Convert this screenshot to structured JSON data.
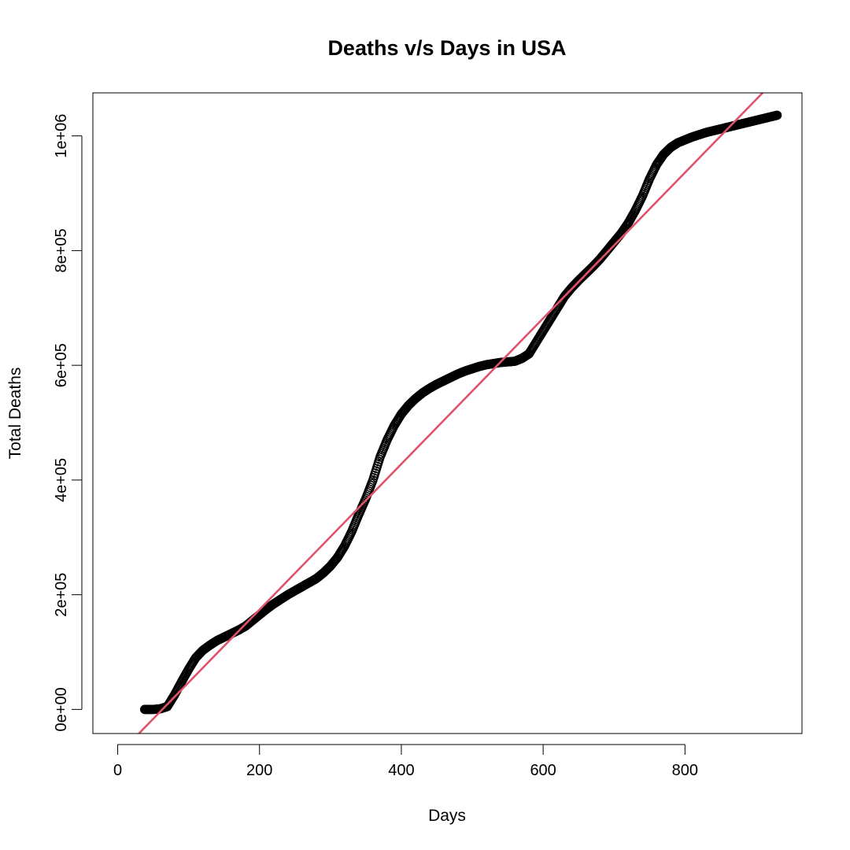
{
  "chart_data": {
    "type": "scatter",
    "title": "Deaths v/s Days in USA",
    "xlabel": "Days",
    "ylabel": "Total Deaths",
    "xlim": [
      -35,
      965
    ],
    "ylim": [
      -42000,
      1075000
    ],
    "x_ticks": [
      0,
      200,
      400,
      600,
      800
    ],
    "x_tick_labels": [
      "0",
      "200",
      "400",
      "600",
      "800"
    ],
    "y_ticks": [
      0,
      200000,
      400000,
      600000,
      800000,
      1000000
    ],
    "y_tick_labels": [
      "0e+00",
      "2e+05",
      "4e+05",
      "6e+05",
      "8e+05",
      "1e+06"
    ],
    "grid": false,
    "legend": "none",
    "point_color": "#000000",
    "line_color": "#DF536B",
    "series": [
      {
        "kind": "points",
        "x_range": [
          38,
          930
        ],
        "x": [
          38,
          50,
          60,
          70,
          80,
          90,
          100,
          110,
          120,
          130,
          140,
          150,
          160,
          170,
          180,
          190,
          200,
          210,
          220,
          230,
          240,
          250,
          260,
          270,
          280,
          290,
          300,
          310,
          320,
          330,
          340,
          350,
          360,
          370,
          380,
          390,
          400,
          410,
          420,
          430,
          440,
          450,
          460,
          470,
          480,
          490,
          500,
          510,
          520,
          530,
          540,
          550,
          560,
          570,
          580,
          590,
          600,
          610,
          620,
          630,
          640,
          650,
          660,
          670,
          680,
          690,
          700,
          710,
          720,
          730,
          740,
          750,
          760,
          770,
          780,
          790,
          800,
          810,
          820,
          830,
          840,
          850,
          860,
          870,
          880,
          890,
          900,
          910,
          920,
          930
        ],
        "y": [
          0,
          0,
          1000,
          5000,
          25000,
          48000,
          70000,
          90000,
          103000,
          112000,
          120000,
          126000,
          132000,
          138000,
          145000,
          155000,
          165000,
          175000,
          184000,
          192000,
          200000,
          207000,
          214000,
          221000,
          228000,
          238000,
          250000,
          265000,
          285000,
          310000,
          340000,
          368000,
          400000,
          440000,
          470000,
          495000,
          515000,
          530000,
          542000,
          552000,
          560000,
          567000,
          573000,
          579000,
          585000,
          590000,
          594000,
          598000,
          601000,
          603000,
          605000,
          606000,
          607000,
          612000,
          620000,
          640000,
          660000,
          680000,
          700000,
          720000,
          735000,
          748000,
          760000,
          772000,
          785000,
          800000,
          815000,
          830000,
          848000,
          870000,
          895000,
          925000,
          950000,
          968000,
          980000,
          988000,
          993000,
          998000,
          1002000,
          1006000,
          1009000,
          1012000,
          1015000,
          1018000,
          1021000,
          1024000,
          1027000,
          1030000,
          1033000,
          1036000
        ]
      },
      {
        "kind": "fit-line",
        "intercept": -80000,
        "slope": 1270
      }
    ]
  }
}
